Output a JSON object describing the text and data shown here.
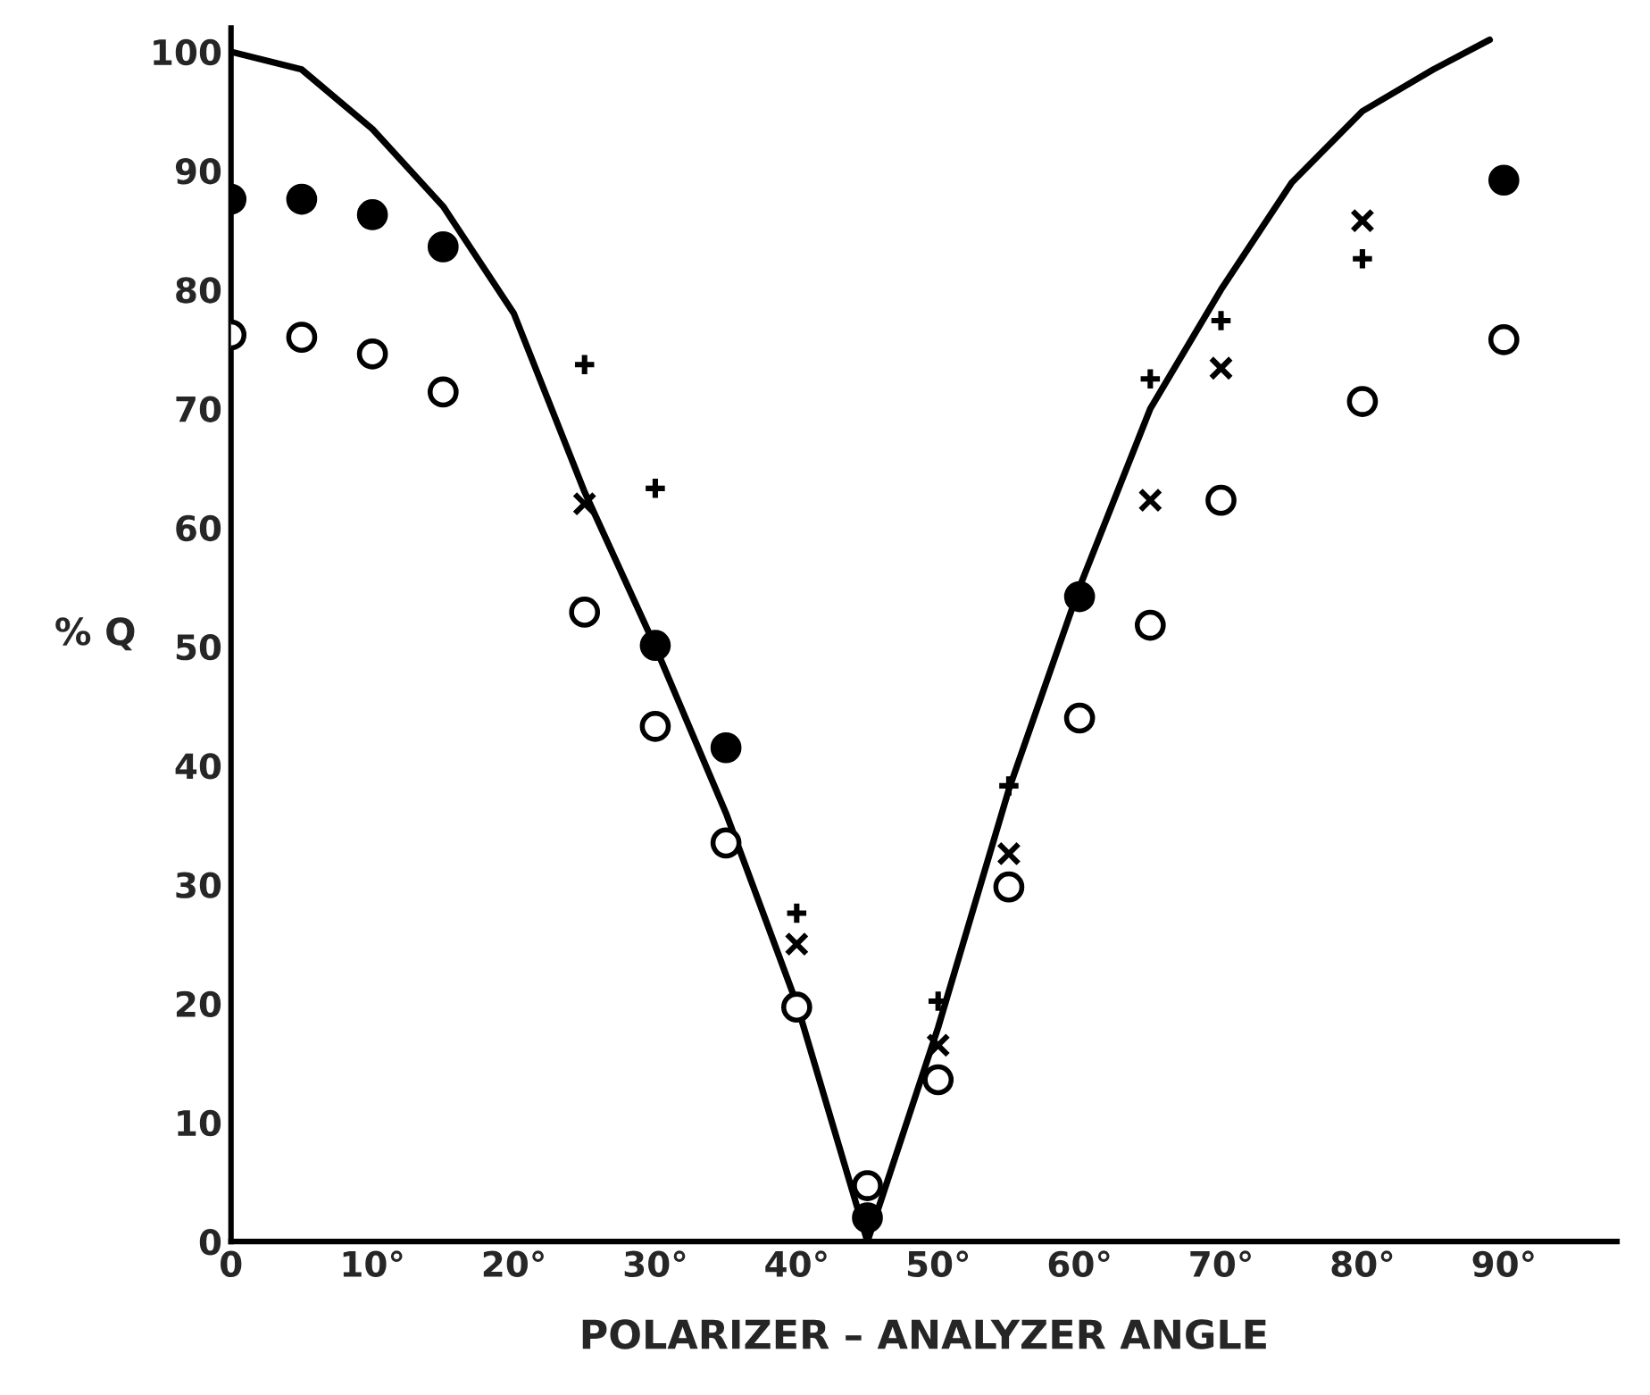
{
  "chart_data": {
    "type": "scatter",
    "xlabel": "POLARIZER – ANALYZER ANGLE",
    "ylabel": "% Q",
    "xlim": [
      0,
      98
    ],
    "ylim": [
      0,
      102
    ],
    "xticks": [
      {
        "value": 0,
        "label": "0"
      },
      {
        "value": 10,
        "label": "10°"
      },
      {
        "value": 20,
        "label": "20°"
      },
      {
        "value": 30,
        "label": "30°"
      },
      {
        "value": 40,
        "label": "40°"
      },
      {
        "value": 50,
        "label": "50°"
      },
      {
        "value": 60,
        "label": "60°"
      },
      {
        "value": 70,
        "label": "70°"
      },
      {
        "value": 80,
        "label": "80°"
      },
      {
        "value": 90,
        "label": "90°"
      }
    ],
    "yticks": [
      0,
      10,
      20,
      30,
      40,
      50,
      60,
      70,
      80,
      90,
      100
    ],
    "grid": false,
    "series": [
      {
        "type": "line",
        "color": "#000000",
        "marker": "none",
        "line_style": "solid",
        "x": [
          0,
          5,
          10,
          15,
          20,
          25,
          30,
          35,
          40,
          45,
          50,
          55,
          60,
          65,
          70,
          75,
          80,
          85,
          89
        ],
        "values": [
          100,
          98.5,
          93.5,
          87,
          78,
          63,
          50,
          36,
          20,
          0,
          18,
          38,
          55,
          70,
          80,
          89,
          95,
          98.5,
          101
        ]
      },
      {
        "color": "#000000",
        "marker": "circle",
        "x": [
          0,
          5,
          10,
          15,
          30,
          35,
          45,
          60,
          90
        ],
        "values": [
          87.6,
          87.6,
          86.3,
          83.6,
          50.1,
          41.5,
          2,
          54.2,
          89.2
        ]
      },
      {
        "color": "#ffffff",
        "marker": "circle",
        "x": [
          0,
          5,
          10,
          15,
          25,
          30,
          35,
          40,
          45,
          50,
          55,
          60,
          65,
          70,
          80,
          90
        ],
        "values": [
          76.2,
          76.0,
          74.6,
          71.4,
          52.9,
          43.3,
          33.5,
          19.7,
          4.7,
          13.6,
          29.8,
          44.0,
          51.8,
          62.3,
          70.6,
          75.8
        ]
      },
      {
        "color": "#000000",
        "marker": "plus",
        "x": [
          25,
          30,
          40,
          50,
          55,
          65,
          70,
          80
        ],
        "values": [
          73.7,
          63.3,
          27.6,
          20.2,
          38.3,
          72.5,
          77.4,
          82.6
        ]
      },
      {
        "color": "#000000",
        "marker": "cross",
        "x": [
          25,
          40,
          50,
          55,
          65,
          70,
          80
        ],
        "values": [
          62.0,
          25.0,
          16.5,
          32.6,
          62.3,
          73.4,
          85.8
        ]
      }
    ]
  }
}
